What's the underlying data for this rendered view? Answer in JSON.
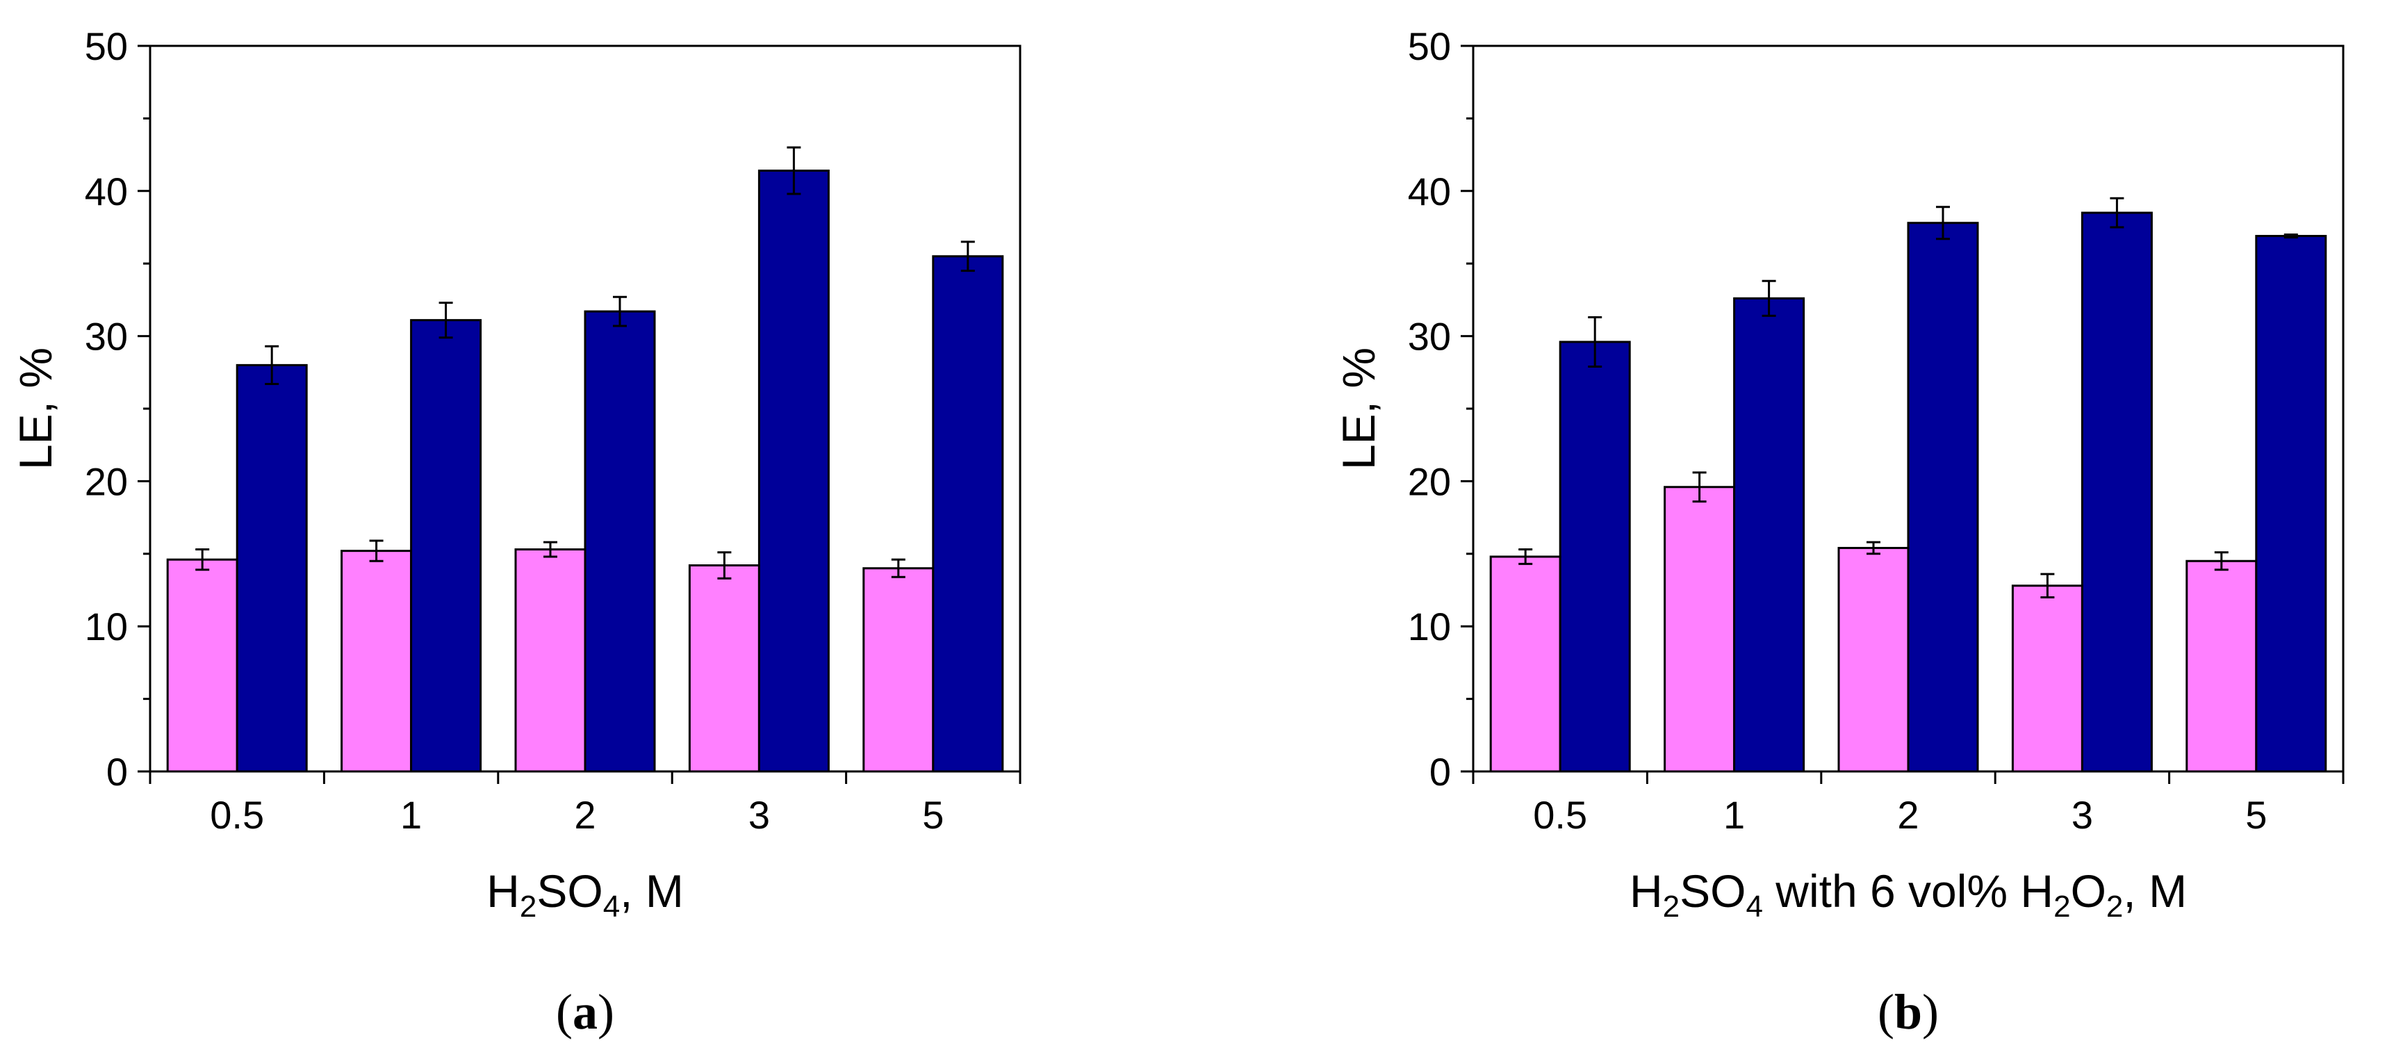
{
  "charts": [
    {
      "panel_label": "(a)",
      "panel_letter": "a",
      "xlabel": "H2SO4, M",
      "ylabel": "LE, %"
    },
    {
      "panel_label": "(b)",
      "panel_letter": "b",
      "xlabel": "H2SO4 with 6 vol% H2O2, M",
      "ylabel": "LE, %"
    }
  ],
  "colors": {
    "series1": "#ff80ff",
    "series2": "#000099",
    "frame": "#000000"
  },
  "chart_data": [
    {
      "type": "bar",
      "title": "(a)",
      "xlabel": "H2SO4, M",
      "ylabel": "LE, %",
      "ylim": [
        0,
        50
      ],
      "yticks": [
        0,
        10,
        20,
        30,
        40,
        50
      ],
      "categories": [
        "0.5",
        "1",
        "2",
        "3",
        "5"
      ],
      "series": [
        {
          "name": "series 1 (pink)",
          "color": "#ff80ff",
          "values": [
            14.6,
            15.2,
            15.3,
            14.2,
            14.0
          ],
          "errors": [
            0.7,
            0.7,
            0.5,
            0.9,
            0.6
          ]
        },
        {
          "name": "series 2 (navy)",
          "color": "#000099",
          "values": [
            28.0,
            31.1,
            31.7,
            41.4,
            35.5
          ],
          "errors": [
            1.3,
            1.2,
            1.0,
            1.6,
            1.0
          ]
        }
      ]
    },
    {
      "type": "bar",
      "title": "(b)",
      "xlabel": "H2SO4 with 6 vol% H2O2, M",
      "ylabel": "LE, %",
      "ylim": [
        0,
        50
      ],
      "yticks": [
        0,
        10,
        20,
        30,
        40,
        50
      ],
      "categories": [
        "0.5",
        "1",
        "2",
        "3",
        "5"
      ],
      "series": [
        {
          "name": "series 1 (pink)",
          "color": "#ff80ff",
          "values": [
            14.8,
            19.6,
            15.4,
            12.8,
            14.5
          ],
          "errors": [
            0.5,
            1.0,
            0.4,
            0.8,
            0.6
          ]
        },
        {
          "name": "series 2 (navy)",
          "color": "#000099",
          "values": [
            29.6,
            32.6,
            37.8,
            38.5,
            36.9
          ],
          "errors": [
            1.7,
            1.2,
            1.1,
            1.0,
            0.1
          ]
        }
      ]
    }
  ]
}
